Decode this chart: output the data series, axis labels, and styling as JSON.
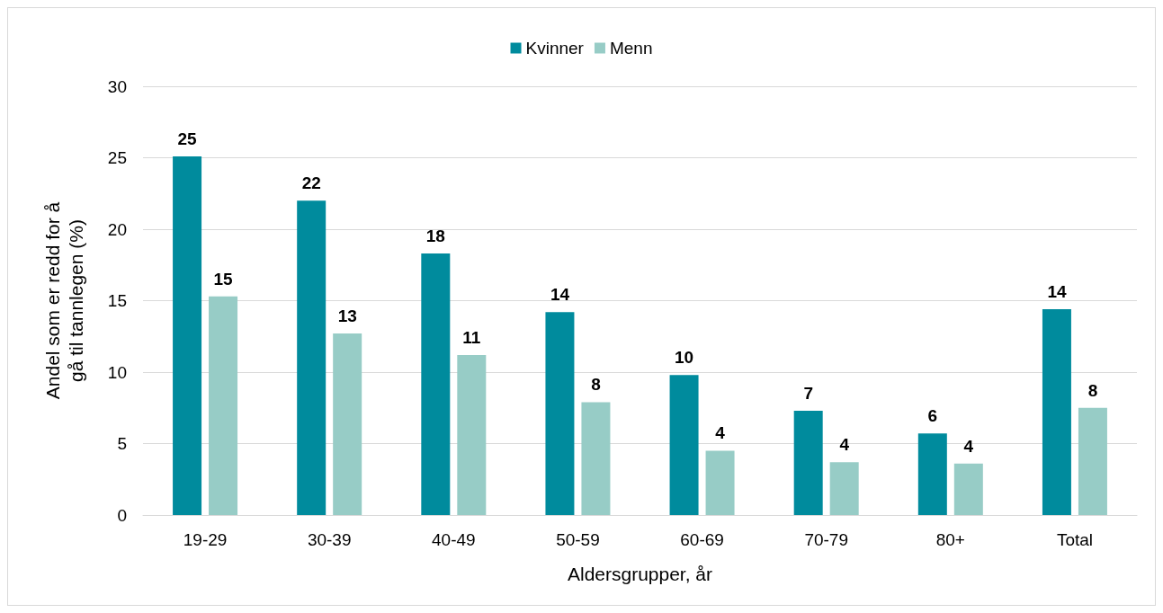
{
  "chart_data": {
    "type": "bar",
    "xlabel": "Aldersgrupper, år",
    "ylabel": "Andel som er redd for å\ngå til tannlegen (%)",
    "categories": [
      "19-29",
      "30-39",
      "40-49",
      "50-59",
      "60-69",
      "70-79",
      "80+",
      "Total"
    ],
    "series": [
      {
        "name": "Kvinner",
        "color": "#008b9d",
        "values": [
          25.1,
          22.0,
          18.3,
          14.2,
          9.8,
          7.3,
          5.7,
          14.4
        ],
        "value_labels": [
          "25",
          "22",
          "18",
          "14",
          "10",
          "7",
          "6",
          "14"
        ]
      },
      {
        "name": "Menn",
        "color": "#97ccc6",
        "values": [
          15.3,
          12.7,
          11.2,
          7.9,
          4.5,
          3.7,
          3.6,
          7.5
        ],
        "value_labels": [
          "15",
          "13",
          "11",
          "8",
          "4",
          "4",
          "4",
          "8"
        ]
      }
    ],
    "ylim": [
      0,
      30
    ],
    "yticks": [
      0,
      5,
      10,
      15,
      20,
      25,
      30
    ],
    "grid": "y",
    "legend": "top"
  }
}
